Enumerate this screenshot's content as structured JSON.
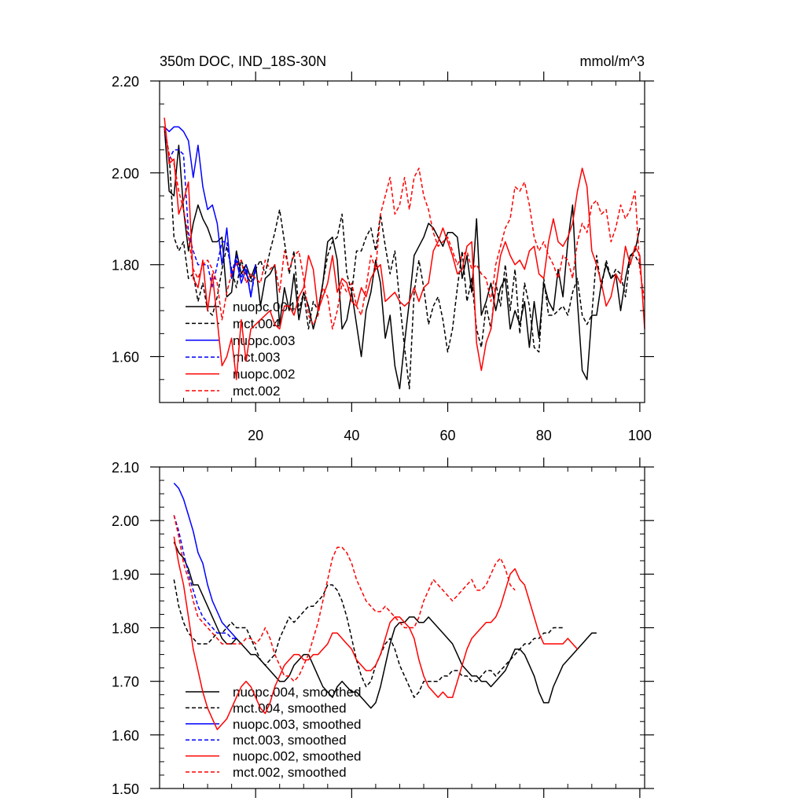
{
  "chart_data": [
    {
      "type": "line",
      "title": "350m DOC, IND_18S-30N",
      "units": "mmol/m^3",
      "xlabel": "",
      "ylabel": "",
      "xlim": [
        0,
        101
      ],
      "ylim": [
        1.5,
        2.2
      ],
      "x_ticks": [
        20,
        40,
        60,
        80,
        100
      ],
      "y_ticks": [
        1.6,
        1.8,
        2.0,
        2.2
      ],
      "y_tick_labels": [
        "1.60",
        "1.80",
        "2.00",
        "2.20"
      ],
      "legend_position": "lower-left",
      "series": [
        {
          "name": "nuopc.004",
          "color": "#000000",
          "dash": "solid",
          "x_start": 1,
          "values": [
            2.1,
            1.96,
            1.95,
            2.06,
            1.92,
            1.83,
            1.89,
            1.93,
            1.9,
            1.88,
            1.85,
            1.85,
            1.86,
            1.73,
            1.74,
            1.83,
            1.78,
            1.8,
            1.77,
            1.8,
            1.71,
            1.77,
            1.78,
            1.8,
            1.67,
            1.75,
            1.7,
            1.78,
            1.68,
            1.74,
            1.71,
            1.66,
            1.7,
            1.76,
            1.85,
            1.86,
            1.81,
            1.66,
            1.68,
            1.74,
            1.67,
            1.6,
            1.7,
            1.74,
            1.81,
            1.76,
            1.64,
            1.69,
            1.58,
            1.53,
            1.63,
            1.72,
            1.82,
            1.84,
            1.86,
            1.89,
            1.88,
            1.86,
            1.84,
            1.87,
            1.87,
            1.86,
            1.77,
            1.82,
            1.74,
            1.9,
            1.69,
            1.72,
            1.76,
            1.7,
            1.75,
            1.77,
            1.66,
            1.7,
            1.67,
            1.72,
            1.62,
            1.72,
            1.64,
            1.76,
            1.72,
            1.7,
            1.79,
            1.73,
            1.85,
            1.93,
            1.72,
            1.57,
            1.55,
            1.69,
            1.69,
            1.76,
            1.8,
            1.77,
            1.78,
            1.7,
            1.77,
            1.82,
            1.83,
            1.88
          ]
        },
        {
          "name": "mct.004",
          "color": "#000000",
          "dash": "dashed",
          "x_start": 1,
          "values": [
            2.1,
            2.04,
            1.86,
            1.83,
            1.85,
            1.77,
            1.78,
            1.72,
            1.76,
            1.7,
            1.69,
            1.73,
            1.79,
            1.84,
            1.79,
            1.75,
            1.81,
            1.78,
            1.76,
            1.79,
            1.81,
            1.78,
            1.83,
            1.87,
            1.92,
            1.85,
            1.78,
            1.83,
            1.7,
            1.74,
            1.66,
            1.72,
            1.7,
            1.76,
            1.82,
            1.85,
            1.86,
            1.91,
            1.78,
            1.74,
            1.83,
            1.83,
            1.86,
            1.88,
            1.83,
            1.91,
            1.84,
            1.78,
            1.83,
            1.72,
            1.62,
            1.53,
            1.74,
            1.81,
            1.75,
            1.67,
            1.71,
            1.73,
            1.68,
            1.61,
            1.66,
            1.75,
            1.83,
            1.72,
            1.77,
            1.66,
            1.62,
            1.71,
            1.66,
            1.76,
            1.71,
            1.8,
            1.7,
            1.79,
            1.65,
            1.76,
            1.71,
            1.62,
            1.61,
            1.77,
            1.69,
            1.69,
            1.7,
            1.71,
            1.69,
            1.74,
            1.77,
            1.69,
            1.67,
            1.69,
            1.82,
            1.75,
            1.81,
            1.77,
            1.79,
            1.78,
            1.73,
            1.82,
            1.82,
            1.8
          ]
        },
        {
          "name": "nuopc.003",
          "color": "#0000ff",
          "dash": "solid",
          "x_start": 1,
          "values": [
            2.1,
            2.09,
            2.1,
            2.1,
            2.09,
            2.07,
            1.99,
            2.06,
            1.97,
            1.92,
            1.93,
            1.89,
            1.8,
            1.88,
            1.77,
            1.81,
            1.76,
            1.79,
            1.73,
            1.8
          ]
        },
        {
          "name": "mct.003",
          "color": "#0000ff",
          "dash": "dashed",
          "x_start": 1,
          "values": [
            2.1,
            2.03,
            2.05,
            2.05,
            2.04,
            1.87,
            1.83,
            1.8,
            1.8,
            1.8,
            1.75,
            1.8,
            1.85,
            1.85,
            1.78,
            1.82,
            1.77,
            1.8,
            1.73,
            1.79
          ]
        },
        {
          "name": "nuopc.002",
          "color": "#ff0000",
          "dash": "solid",
          "x_start": 1,
          "values": [
            2.12,
            2.02,
            2.03,
            1.91,
            1.94,
            1.98,
            1.77,
            1.75,
            1.81,
            1.7,
            1.78,
            1.68,
            1.58,
            1.6,
            1.64,
            1.55,
            1.68,
            1.59,
            1.66,
            1.67,
            1.68,
            1.69,
            1.7,
            1.67,
            1.66,
            1.71,
            1.71,
            1.69,
            1.73,
            1.75,
            1.82,
            1.79,
            1.7,
            1.73,
            1.76,
            1.82,
            1.74,
            1.77,
            1.76,
            1.72,
            1.71,
            1.75,
            1.73,
            1.77,
            1.79,
            1.8,
            1.72,
            1.73,
            1.74,
            1.72,
            1.71,
            1.72,
            1.75,
            1.72,
            1.75,
            1.76,
            1.83,
            1.85,
            1.88,
            1.85,
            1.82,
            1.78,
            1.79,
            1.84,
            1.85,
            1.63,
            1.57,
            1.63,
            1.66,
            1.75,
            1.82,
            1.85,
            1.82,
            1.8,
            1.81,
            1.79,
            1.83,
            1.84,
            1.78,
            1.77,
            1.85,
            1.9,
            1.85,
            1.84,
            1.86,
            1.89,
            1.96,
            2.01,
            1.97,
            1.83,
            1.8,
            1.76,
            1.71,
            1.73,
            1.78,
            1.76,
            1.84,
            1.8,
            1.84,
            1.82,
            1.66
          ]
        },
        {
          "name": "mct.002",
          "color": "#ff0000",
          "dash": "dashed",
          "x_start": 1,
          "values": [
            2.1,
            2.04,
            2.02,
            1.96,
            1.92,
            1.86,
            1.79,
            1.77,
            1.8,
            1.81,
            1.79,
            1.76,
            1.68,
            1.74,
            1.78,
            1.8,
            1.81,
            1.76,
            1.78,
            1.77,
            1.76,
            1.81,
            1.79,
            1.8,
            1.74,
            1.83,
            1.79,
            1.82,
            1.83,
            1.77,
            1.69,
            1.67,
            1.69,
            1.75,
            1.73,
            1.66,
            1.7,
            1.76,
            1.74,
            1.76,
            1.71,
            1.69,
            1.75,
            1.82,
            1.79,
            1.91,
            1.95,
            1.99,
            1.91,
            1.93,
            1.99,
            1.92,
            1.99,
            2.01,
            1.95,
            1.92,
            1.87,
            1.84,
            1.85,
            1.86,
            1.83,
            1.8,
            1.82,
            1.83,
            1.79,
            1.8,
            1.78,
            1.77,
            1.72,
            1.8,
            1.84,
            1.88,
            1.9,
            1.97,
            1.96,
            1.98,
            1.93,
            1.86,
            1.83,
            1.85,
            1.82,
            1.8,
            1.77,
            1.82,
            1.81,
            1.77,
            1.85,
            1.89,
            1.87,
            1.93,
            1.94,
            1.91,
            1.92,
            1.85,
            1.88,
            1.93,
            1.9,
            1.92,
            1.96,
            1.79,
            1.72
          ]
        }
      ]
    },
    {
      "type": "line",
      "title": "",
      "xlabel": "",
      "ylabel": "",
      "xlim": [
        0,
        101
      ],
      "ylim": [
        1.5,
        2.1
      ],
      "x_ticks": [
        20,
        40,
        60,
        80,
        100
      ],
      "y_ticks": [
        1.5,
        1.6,
        1.7,
        1.8,
        1.9,
        2.0,
        2.1
      ],
      "y_tick_labels": [
        "1.50",
        "1.60",
        "1.70",
        "1.80",
        "1.90",
        "2.00",
        "2.10"
      ],
      "legend_position": "lower-left",
      "series": [
        {
          "name": "nuopc.004, smoothed",
          "color": "#000000",
          "dash": "solid",
          "x_start": 3,
          "values": [
            1.96,
            1.94,
            1.93,
            1.91,
            1.88,
            1.88,
            1.86,
            1.84,
            1.82,
            1.8,
            1.78,
            1.77,
            1.77,
            1.78,
            1.77,
            1.76,
            1.75,
            1.75,
            1.74,
            1.73,
            1.72,
            1.71,
            1.7,
            1.7,
            1.71,
            1.73,
            1.74,
            1.75,
            1.75,
            1.73,
            1.71,
            1.69,
            1.68,
            1.67,
            1.69,
            1.7,
            1.69,
            1.68,
            1.68,
            1.67,
            1.66,
            1.65,
            1.66,
            1.69,
            1.73,
            1.77,
            1.8,
            1.81,
            1.81,
            1.82,
            1.82,
            1.81,
            1.81,
            1.82,
            1.81,
            1.8,
            1.79,
            1.78,
            1.77,
            1.75,
            1.73,
            1.72,
            1.71,
            1.71,
            1.7,
            1.7,
            1.69,
            1.7,
            1.71,
            1.72,
            1.74,
            1.76,
            1.76,
            1.75,
            1.73,
            1.71,
            1.68,
            1.66,
            1.66,
            1.69,
            1.71,
            1.73,
            1.74,
            1.75,
            1.76,
            1.77,
            1.78,
            1.79,
            1.79
          ]
        },
        {
          "name": "mct.004, smoothed",
          "color": "#000000",
          "dash": "dashed",
          "x_start": 3,
          "values": [
            1.89,
            1.84,
            1.81,
            1.79,
            1.78,
            1.77,
            1.77,
            1.77,
            1.78,
            1.79,
            1.79,
            1.8,
            1.81,
            1.8,
            1.8,
            1.8,
            1.78,
            1.76,
            1.74,
            1.73,
            1.74,
            1.75,
            1.78,
            1.8,
            1.82,
            1.81,
            1.82,
            1.83,
            1.84,
            1.84,
            1.85,
            1.86,
            1.88,
            1.88,
            1.87,
            1.85,
            1.82,
            1.78,
            1.74,
            1.71,
            1.69,
            1.7,
            1.73,
            1.75,
            1.77,
            1.78,
            1.76,
            1.73,
            1.71,
            1.69,
            1.67,
            1.68,
            1.7,
            1.7,
            1.7,
            1.7,
            1.71,
            1.71,
            1.72,
            1.72,
            1.71,
            1.71,
            1.7,
            1.7,
            1.71,
            1.72,
            1.72,
            1.71,
            1.72,
            1.73,
            1.74,
            1.75,
            1.76,
            1.77,
            1.77,
            1.78,
            1.78,
            1.79,
            1.79,
            1.8,
            1.8,
            1.8
          ]
        },
        {
          "name": "nuopc.003, smoothed",
          "color": "#0000ff",
          "dash": "solid",
          "x_start": 3,
          "values": [
            2.07,
            2.06,
            2.04,
            2.01,
            1.98,
            1.94,
            1.92,
            1.88,
            1.85,
            1.83,
            1.81,
            1.8,
            1.79,
            1.78
          ]
        },
        {
          "name": "mct.003, smoothed",
          "color": "#0000ff",
          "dash": "dashed",
          "x_start": 3,
          "values": [
            2.01,
            1.98,
            1.94,
            1.9,
            1.87,
            1.84,
            1.82,
            1.81,
            1.8,
            1.79,
            1.79,
            1.79,
            1.78,
            1.78
          ]
        },
        {
          "name": "nuopc.002, smoothed",
          "color": "#ff0000",
          "dash": "solid",
          "x_start": 3,
          "values": [
            1.97,
            1.92,
            1.88,
            1.82,
            1.76,
            1.72,
            1.68,
            1.65,
            1.63,
            1.61,
            1.62,
            1.63,
            1.65,
            1.67,
            1.69,
            1.7,
            1.69,
            1.67,
            1.65,
            1.64,
            1.66,
            1.69,
            1.71,
            1.73,
            1.74,
            1.75,
            1.75,
            1.74,
            1.74,
            1.75,
            1.75,
            1.76,
            1.77,
            1.79,
            1.79,
            1.78,
            1.77,
            1.76,
            1.74,
            1.73,
            1.72,
            1.72,
            1.73,
            1.75,
            1.78,
            1.81,
            1.82,
            1.82,
            1.81,
            1.8,
            1.78,
            1.74,
            1.71,
            1.69,
            1.68,
            1.67,
            1.68,
            1.67,
            1.67,
            1.7,
            1.73,
            1.76,
            1.78,
            1.79,
            1.8,
            1.81,
            1.81,
            1.82,
            1.84,
            1.87,
            1.9,
            1.91,
            1.89,
            1.88,
            1.85,
            1.82,
            1.79,
            1.77,
            1.77,
            1.77,
            1.77,
            1.77,
            1.78,
            1.77,
            1.76
          ]
        },
        {
          "name": "mct.002, smoothed",
          "color": "#ff0000",
          "dash": "dashed",
          "x_start": 3,
          "values": [
            2.01,
            1.97,
            1.92,
            1.89,
            1.85,
            1.82,
            1.81,
            1.8,
            1.79,
            1.78,
            1.77,
            1.77,
            1.77,
            1.77,
            1.77,
            1.78,
            1.78,
            1.77,
            1.78,
            1.8,
            1.78,
            1.75,
            1.73,
            1.71,
            1.71,
            1.7,
            1.71,
            1.73,
            1.75,
            1.78,
            1.81,
            1.85,
            1.89,
            1.93,
            1.95,
            1.95,
            1.94,
            1.92,
            1.89,
            1.87,
            1.85,
            1.84,
            1.83,
            1.83,
            1.84,
            1.83,
            1.82,
            1.81,
            1.8,
            1.8,
            1.8,
            1.82,
            1.85,
            1.87,
            1.89,
            1.88,
            1.87,
            1.86,
            1.85,
            1.86,
            1.87,
            1.88,
            1.89,
            1.87,
            1.87,
            1.88,
            1.9,
            1.92,
            1.93,
            1.91,
            1.88,
            1.87
          ]
        }
      ]
    }
  ]
}
